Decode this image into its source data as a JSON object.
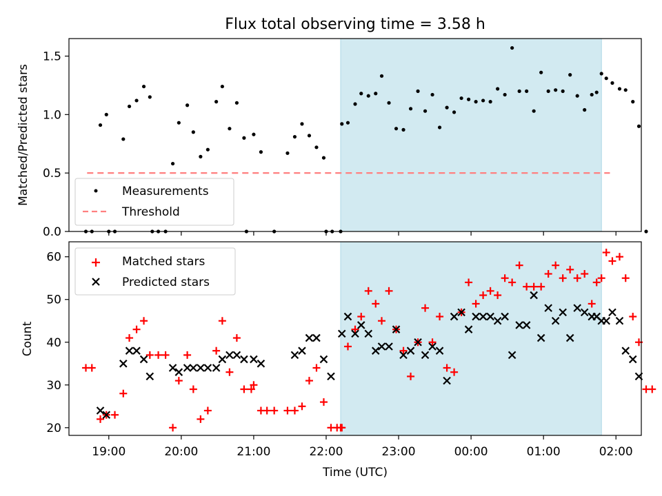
{
  "chart_data": [
    {
      "type": "scatter",
      "title": "Flux total observing time = 3.58 h",
      "ylabel": "Matched/Predicted stars",
      "xlabel": "",
      "xlim": [
        "18:27",
        "02:21"
      ],
      "ylim": [
        0,
        1.65
      ],
      "xticks": [
        "19:00",
        "20:00",
        "21:00",
        "22:00",
        "23:00",
        "00:00",
        "01:00",
        "02:00"
      ],
      "yticks": [
        "0.0",
        "0.5",
        "1.0",
        "1.5"
      ],
      "shaded_range": [
        "22:12",
        "01:48"
      ],
      "shaded_color": "#add8e6",
      "threshold": {
        "name": "Threshold",
        "y": 0.5,
        "x_range": [
          "18:42",
          "01:55"
        ],
        "color": "#ff7f7f"
      },
      "legend_position": "lower-left",
      "series": [
        {
          "name": "Measurements",
          "color": "#000000",
          "marker": "dot",
          "points": [
            [
              "18:41",
              0
            ],
            [
              "18:46",
              0
            ],
            [
              "18:53",
              0.91
            ],
            [
              "18:58",
              1.0
            ],
            [
              "19:00",
              0
            ],
            [
              "19:05",
              0
            ],
            [
              "19:12",
              0.79
            ],
            [
              "19:17",
              1.07
            ],
            [
              "19:23",
              1.12
            ],
            [
              "19:29",
              1.24
            ],
            [
              "19:34",
              1.15
            ],
            [
              "19:36",
              0
            ],
            [
              "19:41",
              0
            ],
            [
              "19:47",
              0
            ],
            [
              "19:53",
              0.58
            ],
            [
              "19:58",
              0.93
            ],
            [
              "20:05",
              1.08
            ],
            [
              "20:10",
              0.85
            ],
            [
              "20:16",
              0.64
            ],
            [
              "20:22",
              0.7
            ],
            [
              "20:29",
              1.11
            ],
            [
              "20:34",
              1.24
            ],
            [
              "20:40",
              0.88
            ],
            [
              "20:46",
              1.1
            ],
            [
              "20:52",
              0.8
            ],
            [
              "20:54",
              0
            ],
            [
              "21:00",
              0.83
            ],
            [
              "21:06",
              0.68
            ],
            [
              "21:17",
              0
            ],
            [
              "21:28",
              0.67
            ],
            [
              "21:34",
              0.81
            ],
            [
              "21:40",
              0.92
            ],
            [
              "21:46",
              0.82
            ],
            [
              "21:52",
              0.72
            ],
            [
              "21:58",
              0.63
            ],
            [
              "22:00",
              0
            ],
            [
              "22:05",
              0
            ],
            [
              "22:12",
              0
            ],
            [
              "22:13",
              0.92
            ],
            [
              "22:18",
              0.93
            ],
            [
              "22:24",
              1.09
            ],
            [
              "22:29",
              1.18
            ],
            [
              "22:35",
              1.16
            ],
            [
              "22:41",
              1.18
            ],
            [
              "22:46",
              1.33
            ],
            [
              "22:52",
              1.1
            ],
            [
              "22:58",
              0.88
            ],
            [
              "23:04",
              0.87
            ],
            [
              "23:10",
              1.05
            ],
            [
              "23:16",
              1.2
            ],
            [
              "23:22",
              1.03
            ],
            [
              "23:28",
              1.17
            ],
            [
              "23:34",
              0.89
            ],
            [
              "23:40",
              1.06
            ],
            [
              "23:46",
              1.02
            ],
            [
              "23:52",
              1.14
            ],
            [
              "23:58",
              1.13
            ],
            [
              "00:04",
              1.11
            ],
            [
              "00:10",
              1.12
            ],
            [
              "00:16",
              1.11
            ],
            [
              "00:22",
              1.22
            ],
            [
              "00:28",
              1.17
            ],
            [
              "00:34",
              1.57
            ],
            [
              "00:40",
              1.2
            ],
            [
              "00:46",
              1.2
            ],
            [
              "00:52",
              1.03
            ],
            [
              "00:58",
              1.36
            ],
            [
              "01:04",
              1.2
            ],
            [
              "01:10",
              1.21
            ],
            [
              "01:16",
              1.2
            ],
            [
              "01:22",
              1.34
            ],
            [
              "01:28",
              1.16
            ],
            [
              "01:34",
              1.04
            ],
            [
              "01:40",
              1.17
            ],
            [
              "01:44",
              1.19
            ],
            [
              "01:48",
              1.35
            ],
            [
              "01:52",
              1.31
            ],
            [
              "01:57",
              1.27
            ],
            [
              "02:03",
              1.22
            ],
            [
              "02:08",
              1.21
            ],
            [
              "02:14",
              1.11
            ],
            [
              "02:19",
              0.9
            ],
            [
              "02:25",
              0
            ]
          ]
        }
      ]
    },
    {
      "type": "scatter",
      "title": "",
      "xlabel": "Time (UTC)",
      "ylabel": "Count",
      "xlim": [
        "18:27",
        "02:21"
      ],
      "ylim": [
        18.2,
        63.5
      ],
      "xticks": [
        "19:00",
        "20:00",
        "21:00",
        "22:00",
        "23:00",
        "00:00",
        "01:00",
        "02:00"
      ],
      "yticks": [
        "20",
        "30",
        "40",
        "50",
        "60"
      ],
      "shaded_range": [
        "22:12",
        "01:48"
      ],
      "shaded_color": "#add8e6",
      "legend_position": "top-left",
      "series": [
        {
          "name": "Matched stars",
          "color": "#ff0000",
          "marker": "plus",
          "points": [
            [
              "18:41",
              34
            ],
            [
              "18:46",
              34
            ],
            [
              "18:53",
              22
            ],
            [
              "18:58",
              23
            ],
            [
              "19:05",
              23
            ],
            [
              "19:12",
              28
            ],
            [
              "19:17",
              41
            ],
            [
              "19:23",
              43
            ],
            [
              "19:29",
              45
            ],
            [
              "19:34",
              37
            ],
            [
              "19:41",
              37
            ],
            [
              "19:47",
              37
            ],
            [
              "19:53",
              20
            ],
            [
              "19:58",
              31
            ],
            [
              "20:05",
              37
            ],
            [
              "20:10",
              29
            ],
            [
              "20:16",
              22
            ],
            [
              "20:22",
              24
            ],
            [
              "20:29",
              38
            ],
            [
              "20:34",
              45
            ],
            [
              "20:40",
              33
            ],
            [
              "20:46",
              41
            ],
            [
              "20:52",
              29
            ],
            [
              "20:58",
              29
            ],
            [
              "21:00",
              30
            ],
            [
              "21:06",
              24
            ],
            [
              "21:11",
              24
            ],
            [
              "21:17",
              24
            ],
            [
              "21:28",
              24
            ],
            [
              "21:34",
              24
            ],
            [
              "21:40",
              25
            ],
            [
              "21:46",
              31
            ],
            [
              "21:52",
              34
            ],
            [
              "21:58",
              26
            ],
            [
              "22:04",
              20
            ],
            [
              "22:09",
              20
            ],
            [
              "22:12",
              20
            ],
            [
              "22:13",
              20
            ],
            [
              "22:18",
              39
            ],
            [
              "22:24",
              43
            ],
            [
              "22:29",
              46
            ],
            [
              "22:35",
              52
            ],
            [
              "22:41",
              49
            ],
            [
              "22:46",
              45
            ],
            [
              "22:52",
              52
            ],
            [
              "22:58",
              43
            ],
            [
              "23:04",
              38
            ],
            [
              "23:10",
              32
            ],
            [
              "23:16",
              40
            ],
            [
              "23:22",
              48
            ],
            [
              "23:28",
              40
            ],
            [
              "23:34",
              46
            ],
            [
              "23:40",
              34
            ],
            [
              "23:46",
              33
            ],
            [
              "23:52",
              47
            ],
            [
              "23:58",
              54
            ],
            [
              "00:04",
              49
            ],
            [
              "00:10",
              51
            ],
            [
              "00:16",
              52
            ],
            [
              "00:22",
              51
            ],
            [
              "00:28",
              55
            ],
            [
              "00:34",
              54
            ],
            [
              "00:40",
              58
            ],
            [
              "00:46",
              53
            ],
            [
              "00:52",
              53
            ],
            [
              "00:58",
              53
            ],
            [
              "01:04",
              56
            ],
            [
              "01:10",
              58
            ],
            [
              "01:16",
              55
            ],
            [
              "01:22",
              57
            ],
            [
              "01:28",
              55
            ],
            [
              "01:34",
              56
            ],
            [
              "01:40",
              49
            ],
            [
              "01:44",
              54
            ],
            [
              "01:48",
              55
            ],
            [
              "01:52",
              61
            ],
            [
              "01:57",
              59
            ],
            [
              "02:03",
              60
            ],
            [
              "02:08",
              55
            ],
            [
              "02:14",
              46
            ],
            [
              "02:19",
              40
            ],
            [
              "02:25",
              29
            ],
            [
              "02:30",
              29
            ]
          ]
        },
        {
          "name": "Predicted stars",
          "color": "#000000",
          "marker": "x",
          "points": [
            [
              "18:53",
              24
            ],
            [
              "18:58",
              23
            ],
            [
              "19:12",
              35
            ],
            [
              "19:17",
              38
            ],
            [
              "19:23",
              38
            ],
            [
              "19:29",
              36
            ],
            [
              "19:34",
              32
            ],
            [
              "19:53",
              34
            ],
            [
              "19:58",
              33
            ],
            [
              "20:05",
              34
            ],
            [
              "20:10",
              34
            ],
            [
              "20:16",
              34
            ],
            [
              "20:22",
              34
            ],
            [
              "20:29",
              34
            ],
            [
              "20:34",
              36
            ],
            [
              "20:40",
              37
            ],
            [
              "20:46",
              37
            ],
            [
              "20:52",
              36
            ],
            [
              "21:00",
              36
            ],
            [
              "21:06",
              35
            ],
            [
              "21:34",
              37
            ],
            [
              "21:40",
              38
            ],
            [
              "21:46",
              41
            ],
            [
              "21:52",
              41
            ],
            [
              "21:58",
              36
            ],
            [
              "22:04",
              32
            ],
            [
              "22:13",
              42
            ],
            [
              "22:18",
              46
            ],
            [
              "22:24",
              42
            ],
            [
              "22:29",
              44
            ],
            [
              "22:35",
              42
            ],
            [
              "22:41",
              38
            ],
            [
              "22:46",
              39
            ],
            [
              "22:52",
              39
            ],
            [
              "22:58",
              43
            ],
            [
              "23:04",
              37
            ],
            [
              "23:10",
              38
            ],
            [
              "23:16",
              40
            ],
            [
              "23:22",
              37
            ],
            [
              "23:28",
              39
            ],
            [
              "23:34",
              38
            ],
            [
              "23:40",
              31
            ],
            [
              "23:46",
              46
            ],
            [
              "23:52",
              47
            ],
            [
              "23:58",
              43
            ],
            [
              "00:04",
              46
            ],
            [
              "00:10",
              46
            ],
            [
              "00:16",
              46
            ],
            [
              "00:22",
              45
            ],
            [
              "00:28",
              46
            ],
            [
              "00:34",
              37
            ],
            [
              "00:40",
              44
            ],
            [
              "00:46",
              44
            ],
            [
              "00:52",
              51
            ],
            [
              "00:58",
              41
            ],
            [
              "01:04",
              48
            ],
            [
              "01:10",
              45
            ],
            [
              "01:16",
              47
            ],
            [
              "01:22",
              41
            ],
            [
              "01:28",
              48
            ],
            [
              "01:34",
              47
            ],
            [
              "01:40",
              46
            ],
            [
              "01:44",
              46
            ],
            [
              "01:48",
              45
            ],
            [
              "01:52",
              45
            ],
            [
              "01:57",
              47
            ],
            [
              "02:03",
              45
            ],
            [
              "02:08",
              38
            ],
            [
              "02:14",
              36
            ],
            [
              "02:19",
              32
            ]
          ]
        }
      ]
    }
  ]
}
